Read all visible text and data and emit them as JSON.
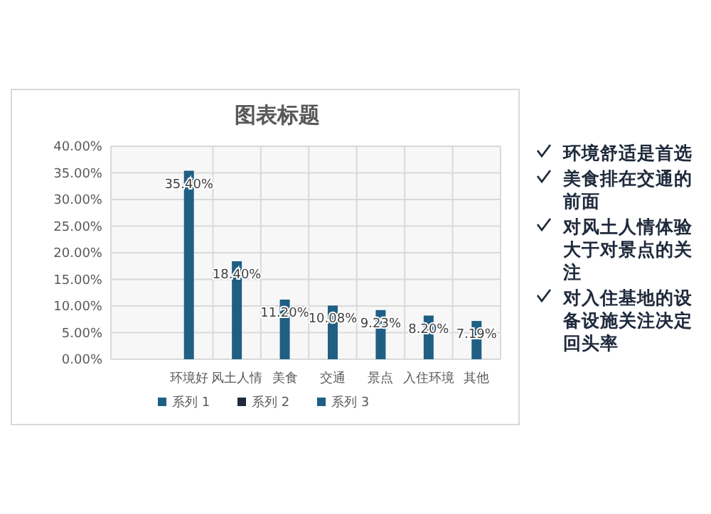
{
  "chart_data": {
    "type": "bar",
    "title": "图表标题",
    "categories": [
      "环境好",
      "风土人情",
      "美食",
      "交通",
      "景点",
      "入住环境",
      "其他"
    ],
    "series": [
      {
        "name": "系列 1",
        "color": "#1f5f84",
        "values": [
          35.4,
          18.4,
          11.2,
          10.08,
          9.23,
          8.2,
          7.19
        ],
        "value_labels": [
          "35.40%",
          "18.40%",
          "11.20%",
          "10.08%",
          "9.23%",
          "8.20%",
          "7.19%"
        ]
      },
      {
        "name": "系列 2",
        "color": "#1f2a3c",
        "values": [
          null,
          null,
          null,
          null,
          null,
          null,
          null
        ]
      },
      {
        "name": "系列 3",
        "color": "#1f5f84",
        "values": [
          null,
          null,
          null,
          null,
          null,
          null,
          null
        ]
      }
    ],
    "ylim": [
      0,
      40
    ],
    "yticks": [
      {
        "value": 0,
        "label": "0.00%"
      },
      {
        "value": 5,
        "label": "5.00%"
      },
      {
        "value": 10,
        "label": "10.00%"
      },
      {
        "value": 15,
        "label": "15.00%"
      },
      {
        "value": 20,
        "label": "20.00%"
      },
      {
        "value": 25,
        "label": "25.00%"
      },
      {
        "value": 30,
        "label": "30.00%"
      },
      {
        "value": 35,
        "label": "35.00%"
      },
      {
        "value": 40,
        "label": "40.00%"
      }
    ],
    "grid": true,
    "legend": "bottom",
    "annotations": [
      "环境舒适是首选",
      "美食排在交通的前面",
      "对风土人情体验大于对景点的关注",
      "对入住基地的设备设施关注决定回头率"
    ]
  }
}
